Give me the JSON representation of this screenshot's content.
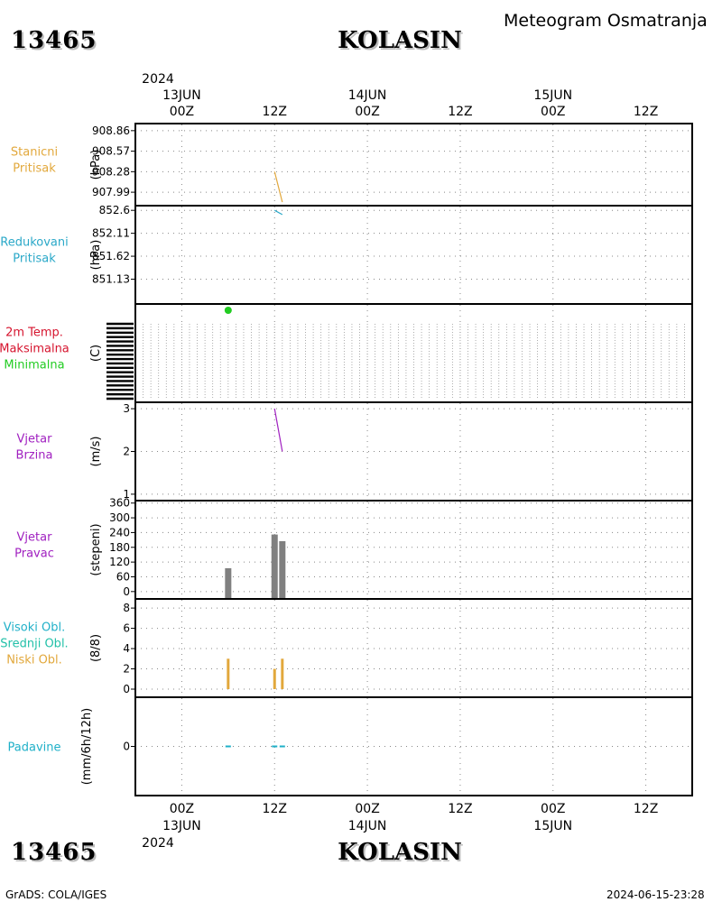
{
  "header": {
    "station_id": "13465",
    "station_name": "KOLASIN",
    "title": "Meteogram Osmatranja"
  },
  "footer": {
    "station_id": "13465",
    "station_name": "KOLASIN",
    "credit": "GrADS: COLA/IGES",
    "timestamp": "2024-06-15-23:28"
  },
  "colors": {
    "station_pressure": "#e2a83c",
    "reduced_pressure": "#2aa8c8",
    "max_temp": "#d6142e",
    "min_temp": "#22cc22",
    "wind": "#a020c0",
    "wind_dir_bar": "#808080",
    "high_cloud": "#1fb0c8",
    "mid_cloud": "#22c0a8",
    "low_cloud": "#e2a83c",
    "precip": "#1fb0c8"
  },
  "chart_data": {
    "type": "line",
    "time_axis": {
      "range_hours": [
        -6,
        66
      ],
      "year_label": "2024",
      "top_ticks": [
        {
          "hour": 0,
          "date": "13JUN",
          "time": "00Z"
        },
        {
          "hour": 12,
          "date": "",
          "time": "12Z"
        },
        {
          "hour": 24,
          "date": "14JUN",
          "time": "00Z"
        },
        {
          "hour": 36,
          "date": "",
          "time": "12Z"
        },
        {
          "hour": 48,
          "date": "15JUN",
          "time": "00Z"
        },
        {
          "hour": 60,
          "date": "",
          "time": "12Z"
        }
      ],
      "bottom_ticks": [
        {
          "hour": 0,
          "time": "00Z",
          "date": "13JUN"
        },
        {
          "hour": 12,
          "time": "12Z",
          "date": ""
        },
        {
          "hour": 24,
          "time": "00Z",
          "date": "14JUN"
        },
        {
          "hour": 36,
          "time": "12Z",
          "date": ""
        },
        {
          "hour": 48,
          "time": "00Z",
          "date": "15JUN"
        },
        {
          "hour": 60,
          "time": "12Z",
          "date": ""
        }
      ]
    },
    "panels": [
      {
        "id": "station-pressure",
        "labels": [
          {
            "text": "Stanicni",
            "color": "#e2a83c"
          },
          {
            "text": "Pritisak",
            "color": "#e2a83c"
          }
        ],
        "unit": "(hPa)",
        "ylim": [
          907.8,
          908.96
        ],
        "yticks": [
          "908.86",
          "908.57",
          "908.28",
          "907.99"
        ],
        "series": [
          {
            "color": "#e2a83c",
            "x": [
              12,
              13
            ],
            "y": [
              908.28,
              907.85
            ]
          }
        ]
      },
      {
        "id": "reduced-pressure",
        "labels": [
          {
            "text": "Redukovani",
            "color": "#2aa8c8"
          },
          {
            "text": "Pritisak",
            "color": "#2aa8c8"
          }
        ],
        "unit": "(hPa)",
        "ylim": [
          850.6,
          852.7
        ],
        "yticks": [
          "852.6",
          "852.11",
          "851.62",
          "851.13"
        ],
        "series": [
          {
            "color": "#2aa8c8",
            "x": [
              12,
              13
            ],
            "y": [
              852.6,
              852.51
            ]
          }
        ]
      },
      {
        "id": "temperature",
        "labels": [
          {
            "text": "2m Temp.",
            "color": "#d6142e"
          },
          {
            "text": "Maksimalna",
            "color": "#d6142e"
          },
          {
            "text": "Minimalna",
            "color": "#22cc22"
          }
        ],
        "unit": "(C)",
        "dense_grid": true,
        "ylim": [
          0,
          1
        ],
        "points": [
          {
            "color": "#22cc22",
            "x": 6,
            "y": 1.02
          }
        ]
      },
      {
        "id": "wind-speed",
        "labels": [
          {
            "text": "Vjetar",
            "color": "#a020c0"
          },
          {
            "text": "Brzina",
            "color": "#a020c0"
          }
        ],
        "unit": "(m/s)",
        "ylim": [
          0.85,
          3.15
        ],
        "yticks": [
          "3",
          "2",
          "1"
        ],
        "ytick_values": [
          3,
          2,
          1
        ],
        "series": [
          {
            "color": "#a020c0",
            "x": [
              12,
              13
            ],
            "y": [
              3.0,
              2.0
            ]
          }
        ]
      },
      {
        "id": "wind-direction",
        "labels": [
          {
            "text": "Vjetar",
            "color": "#a020c0"
          },
          {
            "text": "Pravac",
            "color": "#a020c0"
          }
        ],
        "unit": "(stepeni)",
        "ylim": [
          -30,
          370
        ],
        "yticks": [
          "360",
          "300",
          "240",
          "180",
          "120",
          "60",
          "0"
        ],
        "ytick_values": [
          360,
          300,
          240,
          180,
          120,
          60,
          0
        ],
        "bars": [
          {
            "x": 6,
            "value": 95,
            "color": "#808080"
          },
          {
            "x": 12,
            "value": 232,
            "color": "#808080"
          },
          {
            "x": 13,
            "value": 205,
            "color": "#808080"
          }
        ]
      },
      {
        "id": "cloud-cover",
        "labels": [
          {
            "text": "Visoki Obl.",
            "color": "#1fb0c8"
          },
          {
            "text": "Srednji Obl.",
            "color": "#22c0a8"
          },
          {
            "text": "Niski Obl.",
            "color": "#e2a83c"
          }
        ],
        "unit": "(8/8)",
        "ylim": [
          -0.8,
          8.9
        ],
        "yticks": [
          "8",
          "6",
          "4",
          "2",
          "0"
        ],
        "ytick_values": [
          8,
          6,
          4,
          2,
          0
        ],
        "bars": [
          {
            "x": 6,
            "value": 3,
            "color": "#e2a83c"
          },
          {
            "x": 12,
            "value": 2,
            "color": "#e2a83c"
          },
          {
            "x": 13,
            "value": 3,
            "color": "#e2a83c"
          }
        ]
      },
      {
        "id": "precipitation",
        "labels": [
          {
            "text": "Padavine",
            "color": "#1fb0c8"
          }
        ],
        "unit": "(mm/6h/12h)",
        "ylim": [
          -0.5,
          0.5
        ],
        "yticks": [
          "0"
        ],
        "ytick_values": [
          0
        ],
        "bars": [
          {
            "x": 6,
            "value": 0,
            "color": "#1fb0c8"
          },
          {
            "x": 12,
            "value": 0,
            "color": "#1fb0c8"
          },
          {
            "x": 13,
            "value": 0,
            "color": "#1fb0c8"
          }
        ]
      }
    ]
  }
}
